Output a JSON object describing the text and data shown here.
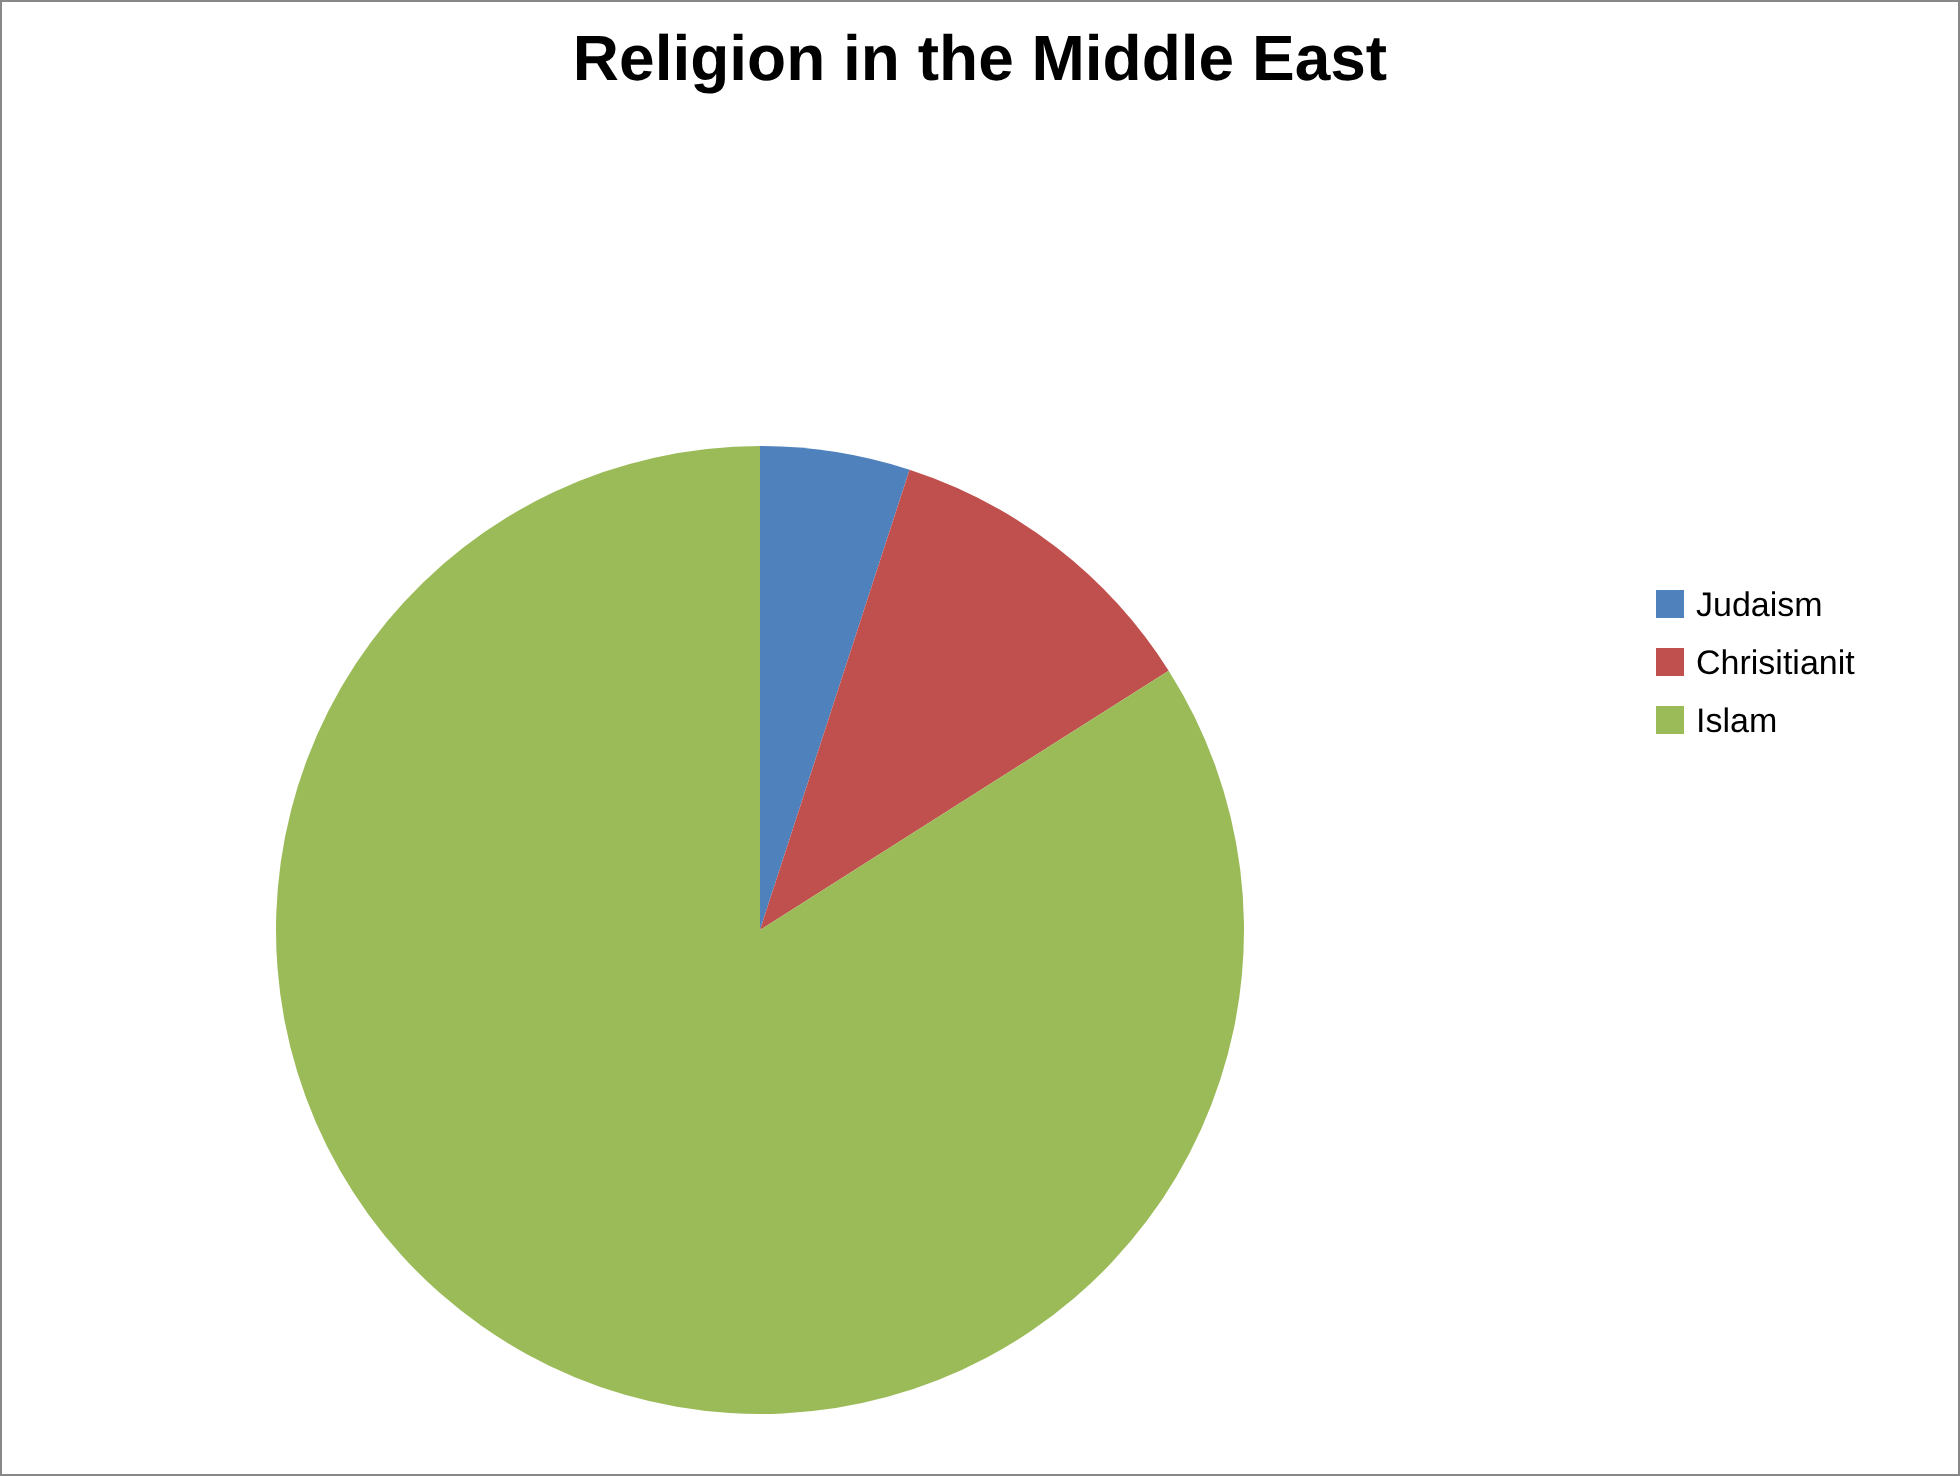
{
  "chart_data": {
    "type": "pie",
    "title": "Religion in the Middle East",
    "categories": [
      "Judaism",
      "Chrisitianit",
      "Islam"
    ],
    "values": [
      5,
      11,
      84
    ],
    "colors": [
      "#4f81bd",
      "#c0504d",
      "#9bbb59"
    ],
    "legend": "right"
  }
}
